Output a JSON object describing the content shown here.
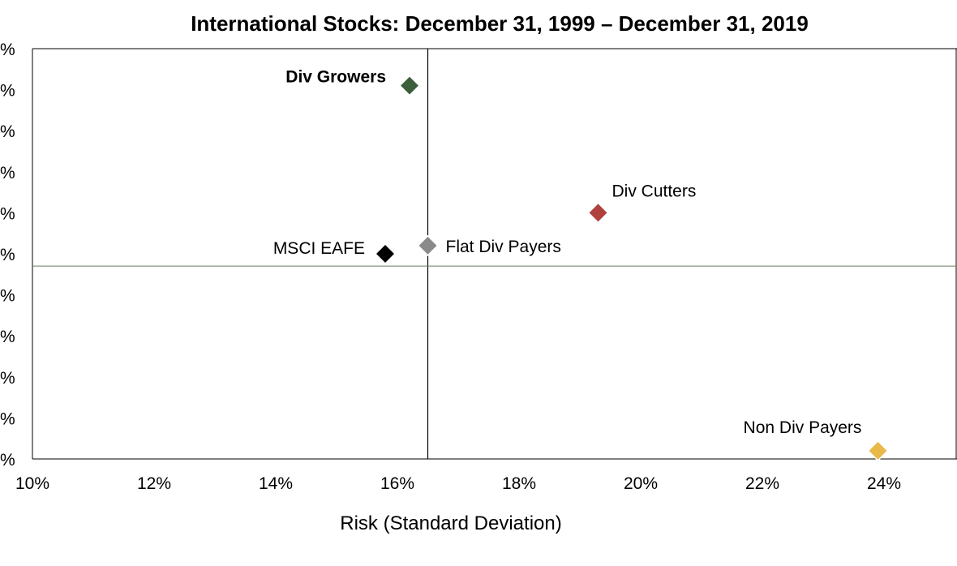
{
  "chart_data": {
    "type": "scatter",
    "title": "International Stocks: December 31, 1999 – December 31, 2019",
    "xlabel": "Risk (Standard Deviation)",
    "ylabel": "",
    "x_ticks": [
      "10%",
      "12%",
      "14%",
      "16%",
      "18%",
      "20%",
      "22%",
      "24%"
    ],
    "xlim": [
      10,
      25.2
    ],
    "y_ticks": [
      "%",
      "%",
      "%",
      "%",
      "%",
      "%",
      "%",
      "%",
      "%",
      "%",
      "%"
    ],
    "ylim": [
      0,
      10
    ],
    "y_note": "y-axis tick values are cropped; only the '%' signs are visible, so y values are in tick-index units",
    "reference_lines": {
      "vertical_x": 16.5,
      "horizontal_y": 4.7
    },
    "points": [
      {
        "label": "Div Growers",
        "x": 16.2,
        "y": 9.1,
        "color": "#3b5e3b",
        "bold": true,
        "label_side": "left-above"
      },
      {
        "label": "Div Cutters",
        "x": 19.3,
        "y": 6.0,
        "color": "#b0413e",
        "bold": false,
        "label_side": "right-above"
      },
      {
        "label": "Flat Div Payers",
        "x": 16.5,
        "y": 5.2,
        "color": "#8a8a8a",
        "bold": false,
        "label_side": "right"
      },
      {
        "label": "MSCI EAFE",
        "x": 15.8,
        "y": 5.0,
        "color": "#000000",
        "bold": false,
        "label_side": "left"
      },
      {
        "label": "Non Div Payers",
        "x": 23.9,
        "y": 0.2,
        "color": "#e8b84a",
        "bold": false,
        "label_side": "left-above"
      }
    ],
    "grid": false,
    "legend": "none"
  }
}
